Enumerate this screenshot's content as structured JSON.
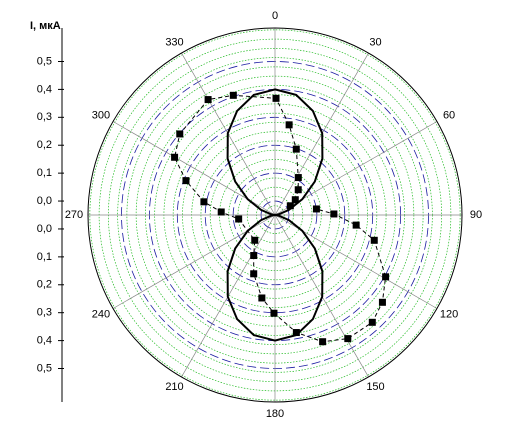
{
  "chart_data": {
    "type": "polar",
    "r_axis_title": "I, мкА",
    "rlim": [
      -0.05,
      0.62
    ],
    "rticks": [
      {
        "value": 0,
        "label": "0,0"
      },
      {
        "value": 0.1,
        "label": "0,1"
      },
      {
        "value": 0.2,
        "label": "0,2"
      },
      {
        "value": 0.3,
        "label": "0,3"
      },
      {
        "value": 0.4,
        "label": "0,4"
      },
      {
        "value": 0.5,
        "label": "0,5"
      }
    ],
    "thetaticks": [
      0,
      30,
      60,
      90,
      120,
      150,
      180,
      210,
      240,
      270,
      300,
      330
    ],
    "direction": "clockwise",
    "zero": "top",
    "grid": true,
    "series": [
      {
        "color": "#000000",
        "line": "solid",
        "marker": "none",
        "theta": [
          0,
          10,
          20,
          30,
          40,
          50,
          60,
          70,
          80,
          90,
          100,
          110,
          120,
          130,
          140,
          150,
          160,
          170,
          180,
          190,
          200,
          210,
          220,
          230,
          240,
          250,
          260,
          270,
          280,
          290,
          300,
          310,
          320,
          330,
          340,
          350
        ],
        "values": [
          0.4,
          0.387,
          0.347,
          0.288,
          0.214,
          0.136,
          0.063,
          0.003,
          -0.037,
          -0.05,
          -0.037,
          0.003,
          0.063,
          0.136,
          0.214,
          0.288,
          0.347,
          0.387,
          0.4,
          0.387,
          0.347,
          0.288,
          0.214,
          0.136,
          0.063,
          0.003,
          -0.037,
          -0.05,
          -0.037,
          0.003,
          0.063,
          0.136,
          0.214,
          0.288,
          0.347,
          0.387
        ]
      },
      {
        "color": "#000000",
        "line": "dashed",
        "marker": "square",
        "theta": [
          59,
          53,
          42.6,
          31.9,
          17.9,
          8.9,
          0.5,
          340.8,
          329.9,
          310.4,
          299.9,
          291.1,
          280.5,
          273.2,
          263.7,
          218.7,
          207.7,
          199.9,
          189,
          180.6,
          169.7,
          159.4,
          149.5,
          137.8,
          129.1,
          119.2,
          104.3,
          97.1,
          89,
          81.7
        ],
        "values": [
          0.014,
          0.041,
          0.073,
          0.108,
          0.198,
          0.277,
          0.368,
          0.404,
          0.428,
          0.398,
          0.365,
          0.292,
          0.209,
          0.143,
          0.081,
          0.066,
          0.114,
          0.174,
          0.251,
          0.302,
          0.378,
          0.435,
          0.464,
          0.469,
          0.446,
          0.404,
          0.317,
          0.243,
          0.161,
          0.1
        ]
      }
    ]
  }
}
